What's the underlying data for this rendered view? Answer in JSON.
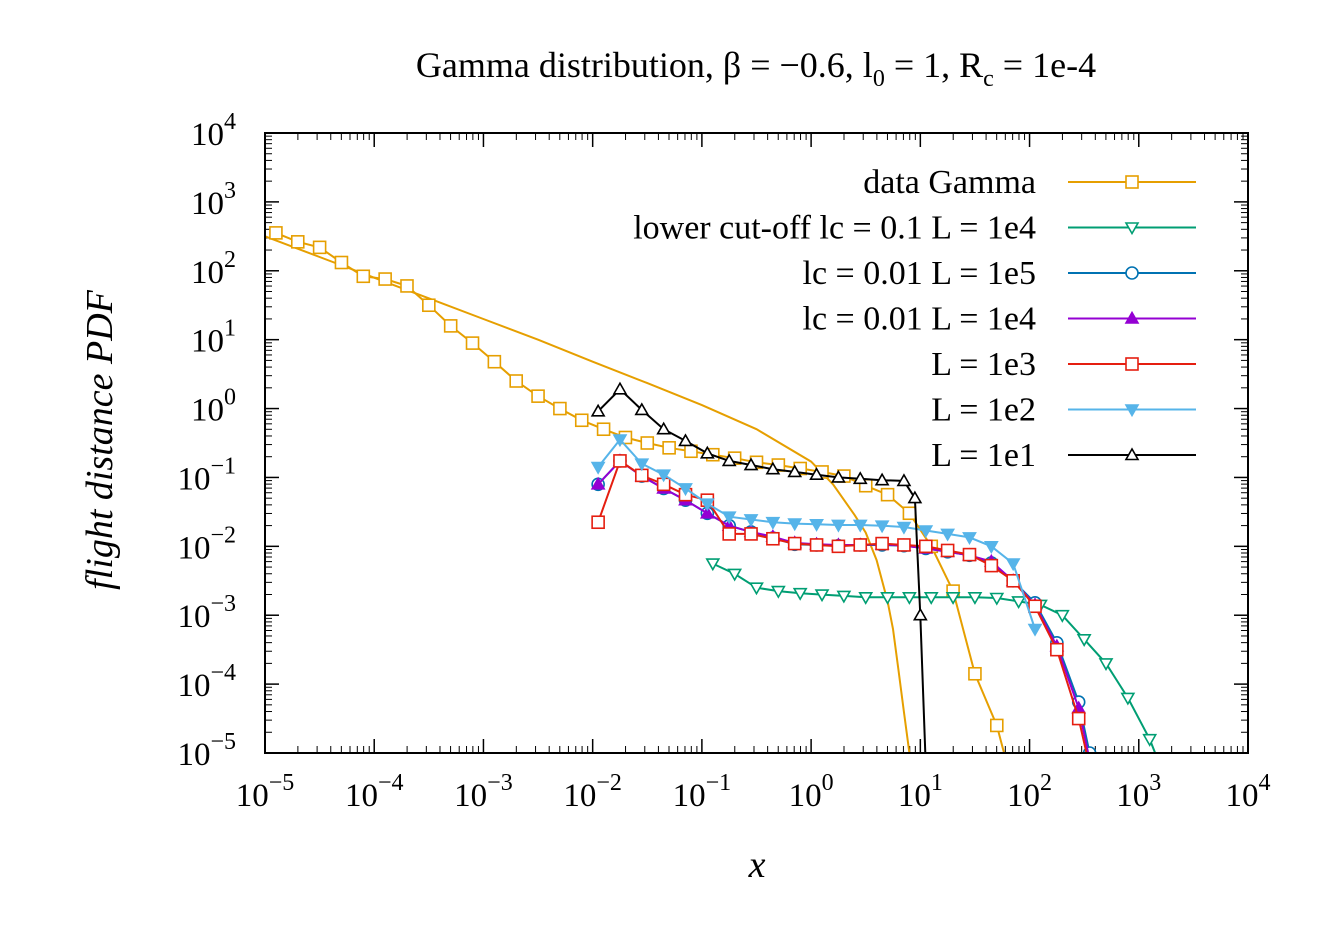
{
  "chart_data": {
    "type": "line",
    "title": "Gamma distribution, β = −0.6, l0 = 1, Rc = 1e-4",
    "title_parts": {
      "prefix": "Gamma distribution, β = −0.6, l",
      "l_sub": "0",
      "middle": " = 1, R",
      "r_sub": "c",
      "suffix": " = 1e-4"
    },
    "xlabel": "x",
    "ylabel": "flight distance PDF",
    "xscale": "log",
    "yscale": "log",
    "xlim_exp": [
      -5,
      4
    ],
    "ylim_exp": [
      -5,
      4
    ],
    "x_ticks": [
      {
        "base": "10",
        "exp": "-5"
      },
      {
        "base": "10",
        "exp": "-4"
      },
      {
        "base": "10",
        "exp": "-3"
      },
      {
        "base": "10",
        "exp": "-2"
      },
      {
        "base": "10",
        "exp": "-1"
      },
      {
        "base": "10",
        "exp": "0"
      },
      {
        "base": "10",
        "exp": "1"
      },
      {
        "base": "10",
        "exp": "2"
      },
      {
        "base": "10",
        "exp": "3"
      },
      {
        "base": "10",
        "exp": "4"
      }
    ],
    "y_ticks": [
      {
        "base": "10",
        "exp": "-5"
      },
      {
        "base": "10",
        "exp": "-4"
      },
      {
        "base": "10",
        "exp": "-3"
      },
      {
        "base": "10",
        "exp": "-2"
      },
      {
        "base": "10",
        "exp": "-1"
      },
      {
        "base": "10",
        "exp": "0"
      },
      {
        "base": "10",
        "exp": "1"
      },
      {
        "base": "10",
        "exp": "2"
      },
      {
        "base": "10",
        "exp": "3"
      },
      {
        "base": "10",
        "exp": "4"
      }
    ],
    "legend_position": "top-right",
    "grid": false,
    "gamma_curve": {
      "color": "#e69f00",
      "log_x": [
        -5.0,
        -4.5,
        -4.0,
        -3.5,
        -3.0,
        -2.5,
        -2.0,
        -1.5,
        -1.0,
        -0.5,
        0.0,
        0.2,
        0.4,
        0.5,
        0.6,
        0.7,
        0.75,
        0.8,
        0.85,
        0.9
      ],
      "log_y": [
        2.5,
        2.2,
        1.9,
        1.6,
        1.3,
        1.0,
        0.68,
        0.37,
        0.05,
        -0.3,
        -0.77,
        -1.1,
        -1.55,
        -1.8,
        -2.2,
        -2.8,
        -3.2,
        -3.8,
        -4.4,
        -5.0
      ]
    },
    "series": [
      {
        "name": "data Gamma",
        "color": "#e69f00",
        "marker": "square-open",
        "log_x": [
          -4.9,
          -4.7,
          -4.5,
          -4.3,
          -4.1,
          -3.9,
          -3.7,
          -3.5,
          -3.3,
          -3.1,
          -2.9,
          -2.7,
          -2.5,
          -2.3,
          -2.1,
          -1.9,
          -1.7,
          -1.5,
          -1.3,
          -1.1,
          -0.9,
          -0.7,
          -0.5,
          -0.3,
          -0.1,
          0.1,
          0.3,
          0.5,
          0.7,
          0.9,
          1.1,
          1.3,
          1.5,
          1.7,
          1.8,
          1.9
        ],
        "log_y": [
          2.55,
          2.42,
          2.34,
          2.12,
          1.92,
          1.88,
          1.78,
          1.5,
          1.2,
          0.95,
          0.68,
          0.4,
          0.18,
          0.0,
          -0.17,
          -0.3,
          -0.42,
          -0.5,
          -0.57,
          -0.62,
          -0.67,
          -0.72,
          -0.78,
          -0.82,
          -0.87,
          -0.92,
          -0.98,
          -1.12,
          -1.25,
          -1.52,
          -2.0,
          -2.65,
          -3.85,
          -4.6,
          -5.2,
          -6.0
        ]
      },
      {
        "name": "lower cut-off lc = 0.1 L = 1e4",
        "color": "#009e73",
        "marker": "triangle-down-open",
        "log_x": [
          -0.9,
          -0.7,
          -0.5,
          -0.3,
          -0.1,
          0.1,
          0.3,
          0.5,
          0.7,
          0.9,
          1.1,
          1.3,
          1.5,
          1.7,
          1.9,
          2.1,
          2.3,
          2.5,
          2.7,
          2.9,
          3.1,
          3.2,
          3.3
        ],
        "log_y": [
          -2.25,
          -2.4,
          -2.6,
          -2.65,
          -2.68,
          -2.7,
          -2.72,
          -2.74,
          -2.74,
          -2.74,
          -2.74,
          -2.74,
          -2.74,
          -2.75,
          -2.8,
          -2.85,
          -3.0,
          -3.35,
          -3.7,
          -4.2,
          -4.8,
          -5.2,
          -5.6
        ]
      },
      {
        "name": "lc = 0.01 L = 1e5",
        "color": "#0072b2",
        "marker": "circle-open",
        "log_x": [
          -1.95,
          -1.75,
          -1.55,
          -1.35,
          -1.15,
          -0.95,
          -0.75,
          -0.55,
          -0.35,
          -0.15,
          0.05,
          0.25,
          0.45,
          0.65,
          0.85,
          1.05,
          1.25,
          1.45,
          1.65,
          1.85,
          2.05,
          2.25,
          2.45,
          2.55,
          2.65
        ],
        "log_y": [
          -1.1,
          -0.76,
          -0.98,
          -1.16,
          -1.33,
          -1.52,
          -1.7,
          -1.79,
          -1.88,
          -1.97,
          -1.98,
          -1.99,
          -1.98,
          -1.98,
          -1.99,
          -2.03,
          -2.08,
          -2.13,
          -2.24,
          -2.5,
          -2.82,
          -3.4,
          -4.26,
          -5.0,
          -6.0
        ]
      },
      {
        "name": "lc = 0.01 L = 1e4",
        "color": "#9400d3",
        "marker": "triangle-up-filled",
        "log_x": [
          -1.95,
          -1.75,
          -1.55,
          -1.35,
          -1.15,
          -0.95,
          -0.75,
          -0.55,
          -0.35,
          -0.15,
          0.05,
          0.25,
          0.45,
          0.65,
          0.85,
          1.05,
          1.25,
          1.45,
          1.65,
          1.85,
          2.05,
          2.25,
          2.45,
          2.55,
          2.65
        ],
        "log_y": [
          -1.1,
          -0.76,
          -0.98,
          -1.16,
          -1.33,
          -1.52,
          -1.7,
          -1.79,
          -1.86,
          -1.95,
          -1.97,
          -1.98,
          -1.98,
          -1.97,
          -1.99,
          -2.03,
          -2.08,
          -2.13,
          -2.22,
          -2.5,
          -2.85,
          -3.45,
          -4.35,
          -5.1,
          -6.0
        ]
      },
      {
        "name": "L = 1e3",
        "color": "#e51e10",
        "marker": "square-open",
        "log_x": [
          -1.95,
          -1.75,
          -1.55,
          -1.35,
          -1.15,
          -0.95,
          -0.75,
          -0.55,
          -0.35,
          -0.15,
          0.05,
          0.25,
          0.45,
          0.65,
          0.85,
          1.05,
          1.25,
          1.45,
          1.65,
          1.85,
          2.05,
          2.25,
          2.45,
          2.55,
          2.65
        ],
        "log_y": [
          -1.65,
          -0.76,
          -0.97,
          -1.1,
          -1.25,
          -1.33,
          -1.82,
          -1.82,
          -1.89,
          -1.96,
          -1.98,
          -2.0,
          -1.98,
          -1.96,
          -1.98,
          -2.0,
          -2.06,
          -2.12,
          -2.28,
          -2.5,
          -2.87,
          -3.5,
          -4.5,
          -5.2,
          -6.0
        ]
      },
      {
        "name": "L = 1e2",
        "color": "#56b4e9",
        "marker": "triangle-down-filled",
        "log_x": [
          -1.95,
          -1.75,
          -1.55,
          -1.35,
          -1.15,
          -0.95,
          -0.75,
          -0.55,
          -0.35,
          -0.15,
          0.05,
          0.25,
          0.45,
          0.65,
          0.85,
          1.05,
          1.25,
          1.45,
          1.65,
          1.85,
          2.05
        ],
        "log_y": [
          -0.85,
          -0.45,
          -0.8,
          -0.96,
          -1.16,
          -1.38,
          -1.57,
          -1.61,
          -1.65,
          -1.67,
          -1.68,
          -1.69,
          -1.69,
          -1.7,
          -1.72,
          -1.77,
          -1.82,
          -1.87,
          -2.0,
          -2.25,
          -3.2
        ]
      },
      {
        "name": "L = 1e1",
        "color": "#000000",
        "marker": "triangle-up-open",
        "log_x": [
          -1.95,
          -1.75,
          -1.55,
          -1.35,
          -1.15,
          -0.95,
          -0.75,
          -0.55,
          -0.35,
          -0.15,
          0.05,
          0.25,
          0.45,
          0.65,
          0.85,
          0.95,
          1.0,
          1.05
        ],
        "log_y": [
          -0.04,
          0.28,
          -0.02,
          -0.3,
          -0.47,
          -0.65,
          -0.76,
          -0.82,
          -0.88,
          -0.92,
          -0.96,
          -1.0,
          -1.02,
          -1.04,
          -1.05,
          -1.3,
          -3.0,
          -5.2
        ]
      }
    ]
  }
}
